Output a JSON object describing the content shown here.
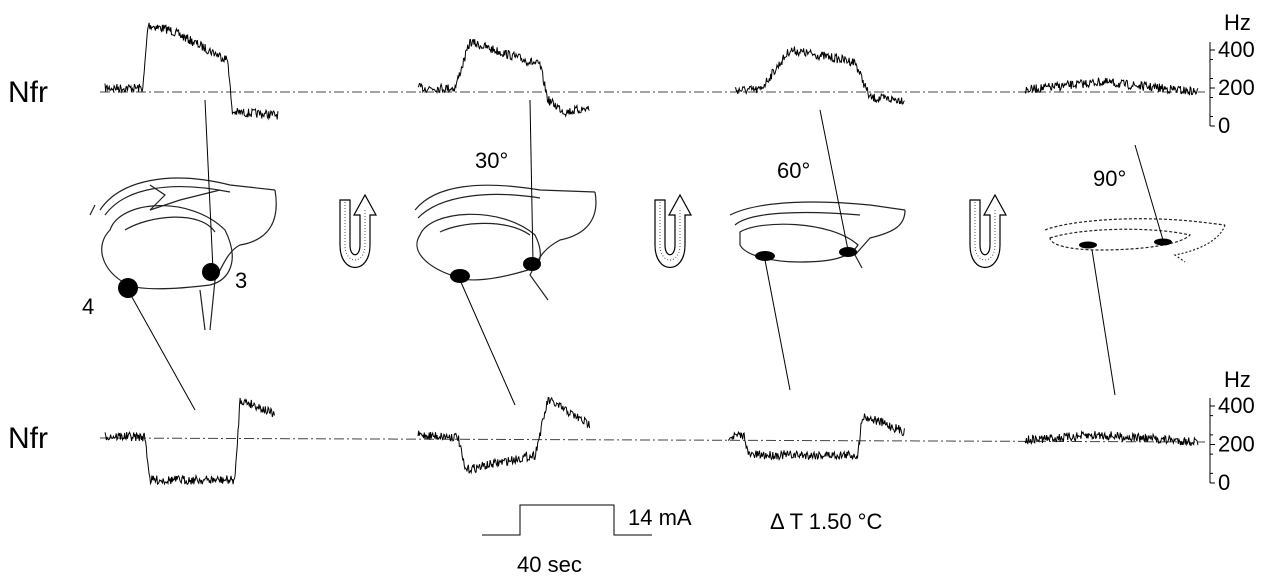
{
  "top_panel": {
    "label": "Nfr",
    "axis_unit": "Hz",
    "axis_ticks": [
      "400",
      "200",
      "0"
    ]
  },
  "bottom_panel": {
    "label": "Nfr",
    "axis_unit": "Hz",
    "axis_ticks": [
      "400",
      "200",
      "0"
    ]
  },
  "tilt_angles": [
    "30°",
    "60°",
    "90°"
  ],
  "electrode_labels": [
    "3",
    "4"
  ],
  "stimulus": {
    "current": "14 mA",
    "duration": "40 sec",
    "temperature": "Δ T 1.50 °C"
  }
}
